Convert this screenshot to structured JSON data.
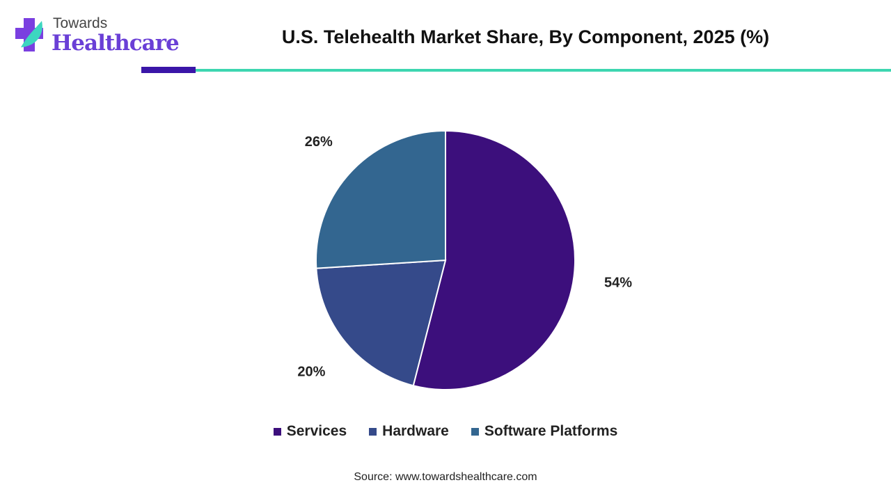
{
  "logo": {
    "line1": "Towards",
    "line2": "Healthcare"
  },
  "title": "U.S. Telehealth Market Share, By Component, 2025 (%)",
  "source": "Source: www.towardshealthcare.com",
  "chart_data": {
    "type": "pie",
    "title": "U.S. Telehealth Market Share, By Component, 2025 (%)",
    "categories": [
      "Services",
      "Hardware",
      "Software Platforms"
    ],
    "values": [
      54,
      20,
      26
    ],
    "labels": [
      "54%",
      "20%",
      "26%"
    ],
    "colors": [
      "#3c0f7c",
      "#354a8a",
      "#336690"
    ],
    "legend": "bottom"
  }
}
